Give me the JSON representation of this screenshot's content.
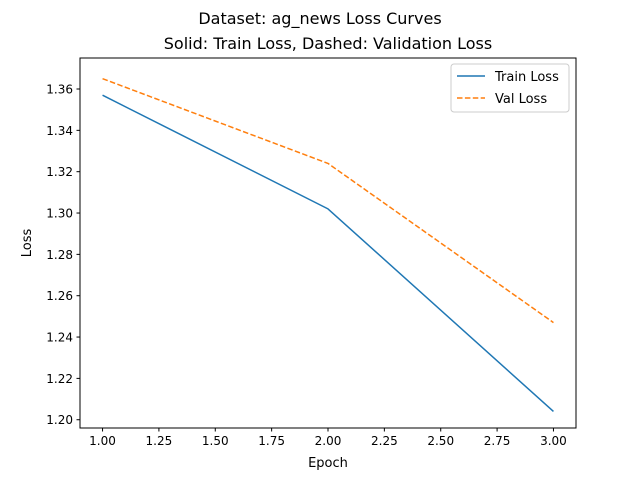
{
  "chart_data": {
    "type": "line",
    "title": "Dataset: ag_news Loss Curves",
    "subtitle": "Solid: Train Loss, Dashed: Validation Loss",
    "xlabel": "Epoch",
    "ylabel": "Loss",
    "xlim": [
      0.9,
      3.1
    ],
    "ylim": [
      1.196,
      1.375
    ],
    "xticks": [
      "1.00",
      "1.25",
      "1.50",
      "1.75",
      "2.00",
      "2.25",
      "2.50",
      "2.75",
      "3.00"
    ],
    "yticks": [
      "1.20",
      "1.22",
      "1.24",
      "1.26",
      "1.28",
      "1.30",
      "1.32",
      "1.34",
      "1.36"
    ],
    "grid": false,
    "legend_position": "top-right",
    "series": [
      {
        "name": "Train Loss",
        "style": "solid",
        "color": "#1f77b4",
        "x": [
          1,
          2,
          3
        ],
        "y": [
          1.357,
          1.302,
          1.204
        ]
      },
      {
        "name": "Val Loss",
        "style": "dashed",
        "color": "#ff7f0e",
        "x": [
          1,
          2,
          3
        ],
        "y": [
          1.365,
          1.324,
          1.247
        ]
      }
    ]
  }
}
